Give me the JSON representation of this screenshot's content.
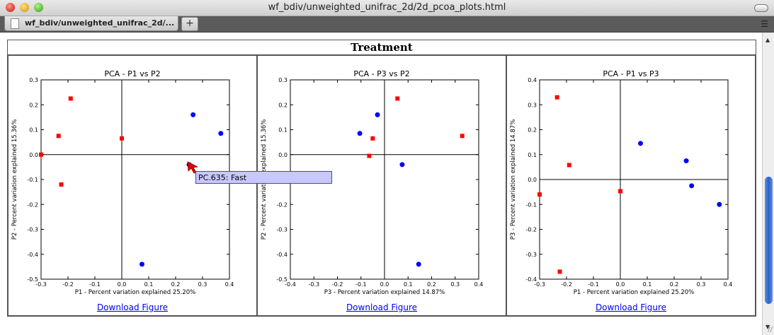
{
  "window": {
    "title": "wf_bdiv/unweighted_unifrac_2d/2d_pcoa_plots.html"
  },
  "tabs": [
    {
      "label": "wf_bdiv/unweighted_unifrac_2d/..."
    }
  ],
  "header": {
    "title": "Treatment"
  },
  "download_label": "Download Figure",
  "tooltip": "PC.635: Fast",
  "colors": {
    "series_a": "#0000ff",
    "series_b": "#ff0000"
  },
  "chart_data": [
    {
      "type": "scatter",
      "title": "PCA - P1 vs P2",
      "xlabel": "P1 - Percent variation explained 25.20%",
      "ylabel": "P2 - Percent variation explained 15.36%",
      "xlim": [
        -0.3,
        0.4
      ],
      "ylim": [
        -0.5,
        0.3
      ],
      "xticks": [
        "-0.3",
        "-0.2",
        "-0.1",
        "0.0",
        "0.1",
        "0.2",
        "0.3",
        "0.4"
      ],
      "yticks": [
        "-0.5",
        "-0.4",
        "-0.3",
        "-0.2",
        "-0.1",
        "0.0",
        "0.1",
        "0.2",
        "0.3"
      ],
      "series": [
        {
          "marker": "circle",
          "points": [
            [
              0.265,
              0.16
            ],
            [
              0.368,
              0.085
            ],
            [
              0.25,
              -0.04
            ],
            [
              0.075,
              -0.44
            ]
          ]
        },
        {
          "marker": "square",
          "points": [
            [
              -0.19,
              0.225
            ],
            [
              -0.235,
              0.075
            ],
            [
              0.0,
              0.065
            ],
            [
              -0.3,
              0.0
            ],
            [
              -0.225,
              -0.12
            ]
          ]
        }
      ]
    },
    {
      "type": "scatter",
      "title": "PCA - P3 vs P2",
      "xlabel": "P3 - Percent variation explained 14.87%",
      "ylabel": "P2 - Percent variation explained 15.36%",
      "xlim": [
        -0.4,
        0.4
      ],
      "ylim": [
        -0.5,
        0.3
      ],
      "xticks": [
        "-0.4",
        "-0.3",
        "-0.2",
        "-0.1",
        "0.0",
        "0.1",
        "0.2",
        "0.3",
        "0.4"
      ],
      "yticks": [
        "-0.5",
        "-0.4",
        "-0.3",
        "-0.2",
        "-0.1",
        "0.0",
        "0.1",
        "0.2",
        "0.3"
      ],
      "series": [
        {
          "marker": "circle",
          "points": [
            [
              -0.03,
              0.16
            ],
            [
              -0.105,
              0.085
            ],
            [
              0.075,
              -0.04
            ],
            [
              0.145,
              -0.44
            ]
          ]
        },
        {
          "marker": "square",
          "points": [
            [
              0.055,
              0.225
            ],
            [
              -0.05,
              0.065
            ],
            [
              0.33,
              0.075
            ],
            [
              -0.065,
              -0.005
            ]
          ]
        }
      ]
    },
    {
      "type": "scatter",
      "title": "PCA - P1 vs P3",
      "xlabel": "P1 - Percent variation explained 25.20%",
      "ylabel": "P3 - Percent variation explained 14.87%",
      "xlim": [
        -0.3,
        0.4
      ],
      "ylim": [
        -0.4,
        0.4
      ],
      "xticks": [
        "-0.3",
        "-0.2",
        "-0.1",
        "0.0",
        "0.1",
        "0.2",
        "0.3",
        "0.4"
      ],
      "yticks": [
        "-0.4",
        "-0.3",
        "-0.2",
        "-0.1",
        "0.0",
        "0.1",
        "0.2",
        "0.3",
        "0.4"
      ],
      "series": [
        {
          "marker": "circle",
          "points": [
            [
              0.075,
              0.145
            ],
            [
              0.245,
              0.075
            ],
            [
              0.265,
              -0.025
            ],
            [
              0.368,
              -0.1
            ]
          ]
        },
        {
          "marker": "square",
          "points": [
            [
              -0.235,
              0.33
            ],
            [
              -0.19,
              0.058
            ],
            [
              0.0,
              -0.047
            ],
            [
              -0.3,
              -0.06
            ],
            [
              -0.225,
              -0.37
            ]
          ]
        }
      ]
    }
  ]
}
